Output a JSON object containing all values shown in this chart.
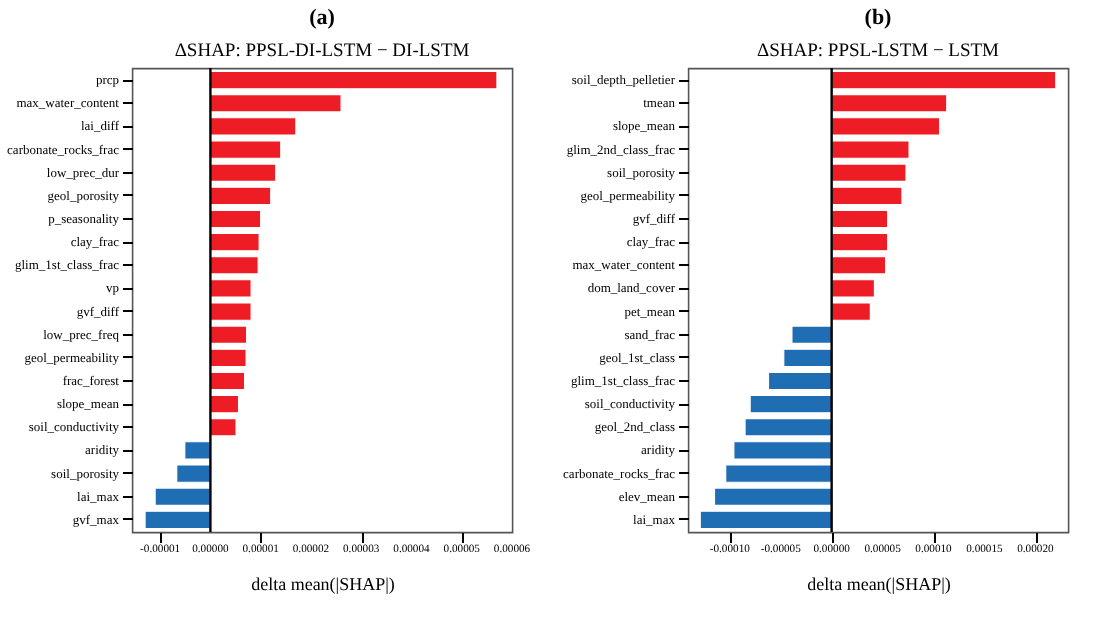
{
  "chart_data": [
    {
      "type": "bar",
      "orientation": "horizontal",
      "title": "(a)",
      "subtitle": "ΔSHAP: PPSL-DI-LSTM − DI-LSTM",
      "xlabel": "delta mean(|SHAP|)",
      "categories": [
        "prcp",
        "max_water_content",
        "lai_diff",
        "carbonate_rocks_frac",
        "low_prec_dur",
        "geol_porosity",
        "p_seasonality",
        "clay_frac",
        "glim_1st_class_frac",
        "vp",
        "gvf_diff",
        "low_prec_freq",
        "geol_permeability",
        "frac_forest",
        "slope_mean",
        "soil_conductivity",
        "aridity",
        "soil_porosity",
        "lai_max",
        "gvf_max"
      ],
      "values": [
        5.7e-05,
        2.6e-05,
        1.7e-05,
        1.4e-05,
        1.3e-05,
        1.2e-05,
        1e-05,
        9.7e-06,
        9.5e-06,
        8.1e-06,
        8.1e-06,
        7.2e-06,
        7.1e-06,
        6.8e-06,
        5.6e-06,
        5.1e-06,
        -5.1e-06,
        -6.7e-06,
        -1.1e-05,
        -1.3e-05
      ],
      "colors": [
        "#ee1c25",
        "#ee1c25",
        "#ee1c25",
        "#ee1c25",
        "#ee1c25",
        "#ee1c25",
        "#ee1c25",
        "#ee1c25",
        "#ee1c25",
        "#ee1c25",
        "#ee1c25",
        "#ee1c25",
        "#ee1c25",
        "#ee1c25",
        "#ee1c25",
        "#ee1c25",
        "#1f6db3",
        "#1f6db3",
        "#1f6db3",
        "#1f6db3"
      ],
      "xlim": [
        -1.56e-05,
        6e-05
      ],
      "xticks": [
        {
          "value": -1e-05,
          "label": "-0.00001"
        },
        {
          "value": 0,
          "label": "0.00000"
        },
        {
          "value": 1e-05,
          "label": "0.00001"
        },
        {
          "value": 2e-05,
          "label": "0.00002"
        },
        {
          "value": 3e-05,
          "label": "0.00003"
        },
        {
          "value": 4e-05,
          "label": "0.00004"
        },
        {
          "value": 5e-05,
          "label": "0.00005"
        },
        {
          "value": 6e-05,
          "label": "0.00006"
        }
      ],
      "ref_lines": [
        {
          "axis": "x",
          "value": 0,
          "color": "#000000"
        }
      ],
      "grid": false
    },
    {
      "type": "bar",
      "orientation": "horizontal",
      "title": "(b)",
      "subtitle": "ΔSHAP: PPSL-LSTM − LSTM",
      "xlabel": "delta mean(|SHAP|)",
      "categories": [
        "soil_depth_pelletier",
        "tmean",
        "slope_mean",
        "glim_2nd_class_frac",
        "soil_porosity",
        "geol_permeability",
        "gvf_diff",
        "clay_frac",
        "max_water_content",
        "dom_land_cover",
        "pet_mean",
        "sand_frac",
        "geol_1st_class",
        "glim_1st_class_frac",
        "soil_conductivity",
        "geol_2nd_class",
        "aridity",
        "carbonate_rocks_frac",
        "elev_mean",
        "lai_max"
      ],
      "values": [
        0.00022,
        0.000113,
        0.000106,
        7.6e-05,
        7.3e-05,
        6.9e-05,
        5.5e-05,
        5.5e-05,
        5.3e-05,
        4.2e-05,
        3.8e-05,
        -3.9e-05,
        -4.7e-05,
        -6.2e-05,
        -8e-05,
        -8.5e-05,
        -9.6e-05,
        -0.000104,
        -0.000115,
        -0.000129
      ],
      "colors": [
        "#ee1c25",
        "#ee1c25",
        "#ee1c25",
        "#ee1c25",
        "#ee1c25",
        "#ee1c25",
        "#ee1c25",
        "#ee1c25",
        "#ee1c25",
        "#ee1c25",
        "#ee1c25",
        "#1f6db3",
        "#1f6db3",
        "#1f6db3",
        "#1f6db3",
        "#1f6db3",
        "#1f6db3",
        "#1f6db3",
        "#1f6db3",
        "#1f6db3"
      ],
      "xlim": [
        -0.000141,
        0.000232
      ],
      "xticks": [
        {
          "value": -0.0001,
          "label": "-0.00010"
        },
        {
          "value": -5e-05,
          "label": "-0.00005"
        },
        {
          "value": 0,
          "label": "0.00000"
        },
        {
          "value": 5e-05,
          "label": "0.00005"
        },
        {
          "value": 0.0001,
          "label": "0.00010"
        },
        {
          "value": 0.00015,
          "label": "0.00015"
        },
        {
          "value": 0.0002,
          "label": "0.00020"
        }
      ],
      "ref_lines": [
        {
          "axis": "x",
          "value": 0,
          "color": "#000000"
        }
      ],
      "grid": false
    }
  ]
}
